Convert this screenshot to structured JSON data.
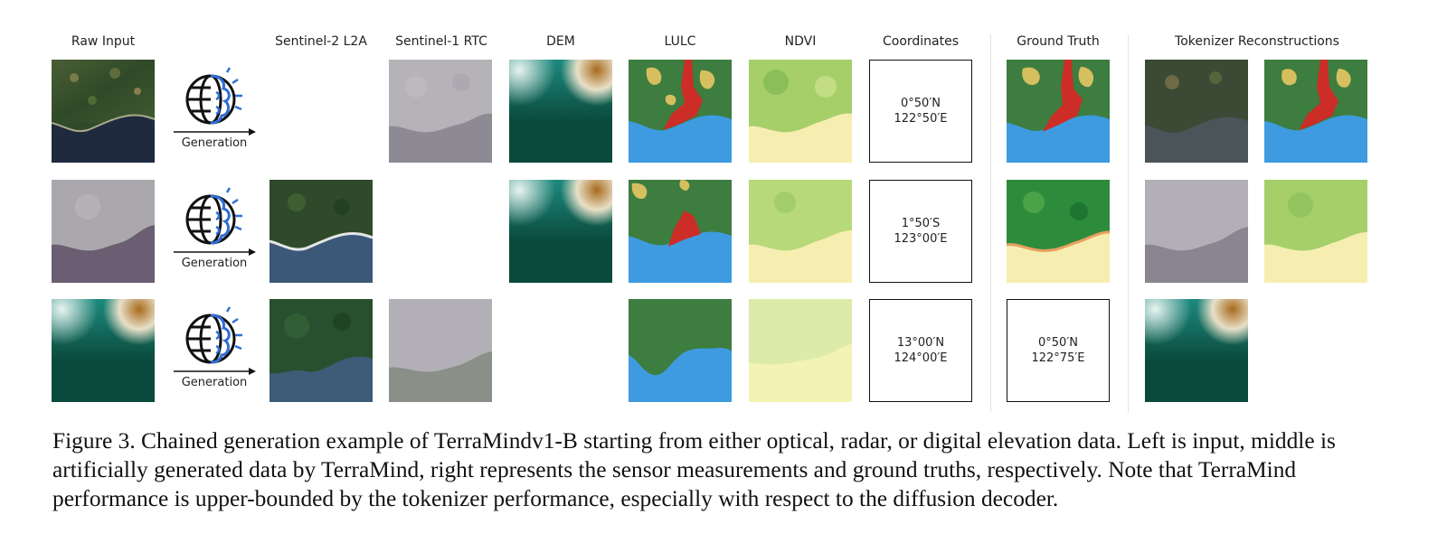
{
  "headers": {
    "raw_input": "Raw Input",
    "s2": "Sentinel-2 L2A",
    "s1": "Sentinel-1 RTC",
    "dem": "DEM",
    "lulc": "LULC",
    "ndvi": "NDVI",
    "coords": "Coordinates",
    "gt": "Ground Truth",
    "tok": "Tokenizer Reconstructions"
  },
  "generation_label": "Generation",
  "icons": {
    "generator": "globe-brain-icon",
    "arrow": "arrow-right-icon"
  },
  "rows": [
    {
      "coord_lat": "0°50′N",
      "coord_lon": "122°50′E"
    },
    {
      "coord_lat": "1°50′S",
      "coord_lon": "123°00′E"
    },
    {
      "coord_lat": "13°00′N",
      "coord_lon": "124°00′E",
      "gt_lat": "0°50′N",
      "gt_lon": "122°75′E"
    }
  ],
  "colors": {
    "lulc_forest": "#3d7d3f",
    "lulc_crop": "#d6bf5e",
    "lulc_built": "#cc2d26",
    "lulc_water": "#3e9be0",
    "dem_low": "#0a4a3c",
    "dem_mid": "#1d8a7f",
    "dem_high": "#a86a1c",
    "brain_blue": "#2f6fd6"
  },
  "caption": {
    "line1": "Figure 3. Chained generation example of TerraMindv1-B starting from either optical, radar, or digital elevation data. Left is input, middle is",
    "line2": "artificially generated data by TerraMind, right represents the sensor measurements and ground truths, respectively. Note that TerraMind",
    "line3": "performance is upper-bounded by the tokenizer performance, especially with respect to the diffusion decoder."
  }
}
